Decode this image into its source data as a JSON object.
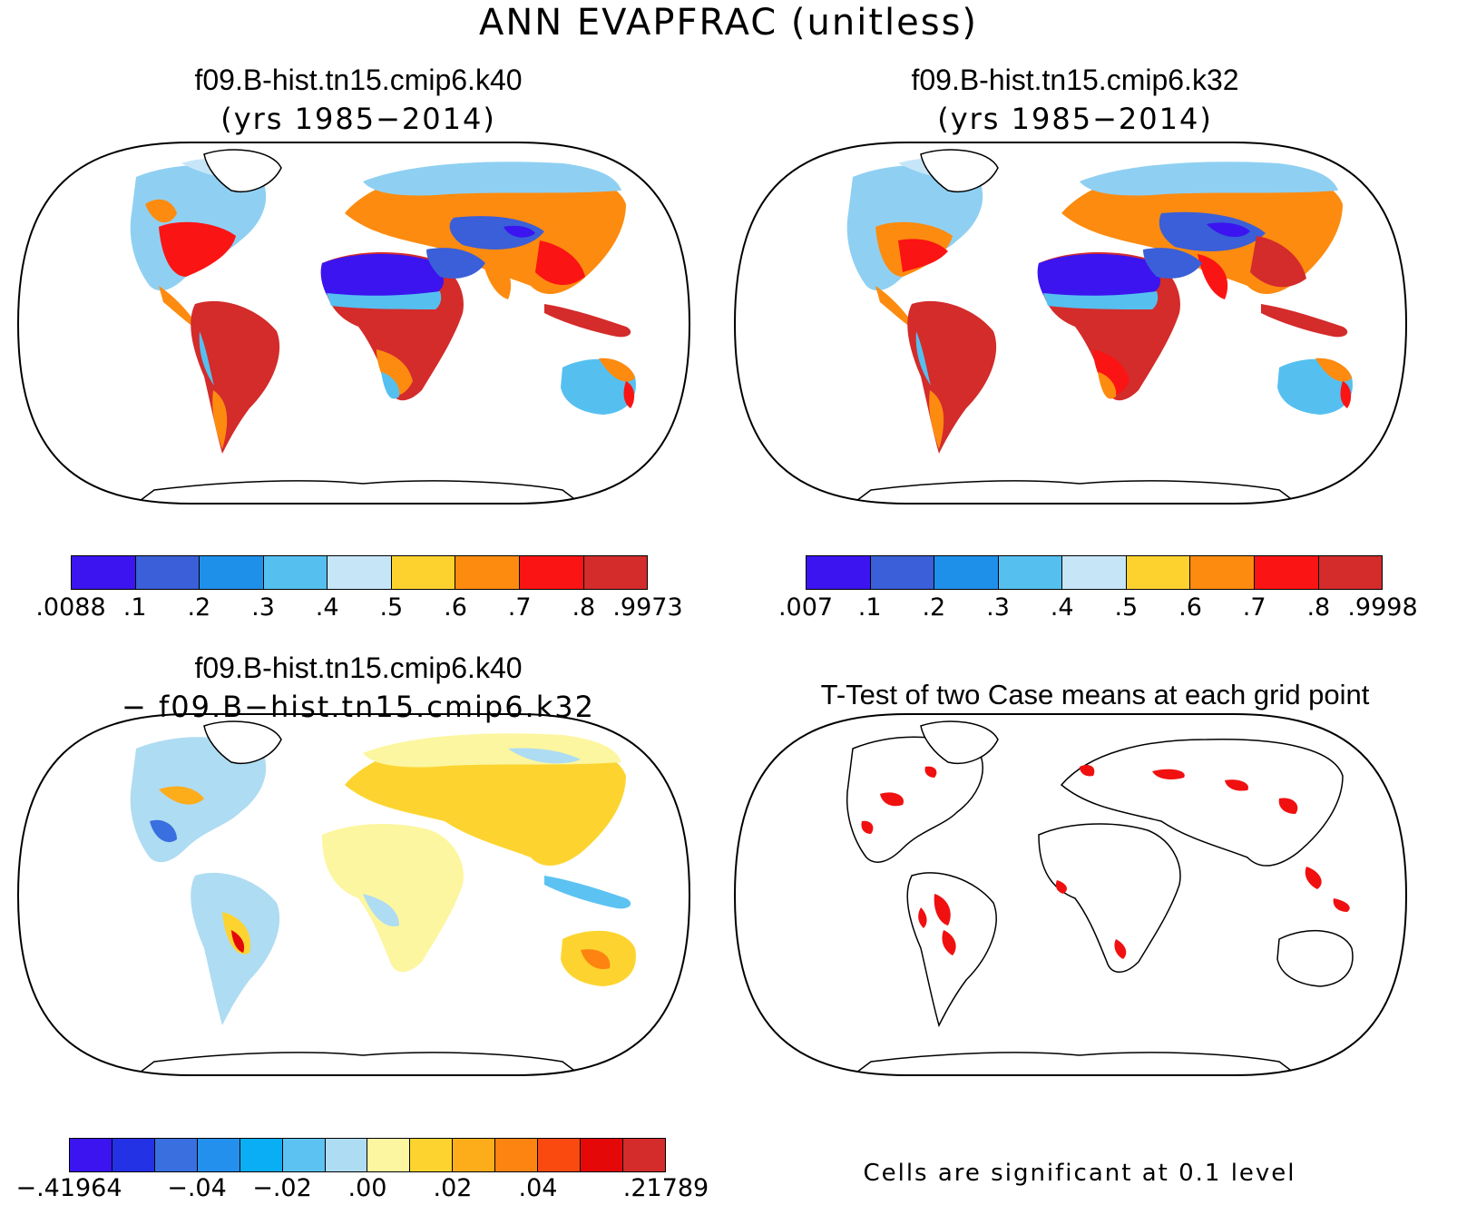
{
  "title": "ANN EVAPFRAC (unitless)",
  "panels": {
    "top_left": {
      "case": "f09.B-hist.tn15.cmip6.k40",
      "years": "(yrs 1985−2014)",
      "colorbar": {
        "colors": [
          "#3b14ef",
          "#3a5fd8",
          "#1f90ea",
          "#55c0f0",
          "#c6e6f8",
          "#fdd22f",
          "#fd8b10",
          "#fb1414",
          "#d42b2b"
        ],
        "labels": [
          ".0088",
          ".1",
          ".2",
          ".3",
          ".4",
          ".5",
          ".6",
          ".7",
          ".8",
          ".9973"
        ]
      }
    },
    "top_right": {
      "case": "f09.B-hist.tn15.cmip6.k32",
      "years": "(yrs 1985−2014)",
      "colorbar": {
        "colors": [
          "#3b14ef",
          "#3a5fd8",
          "#1f90ea",
          "#55c0f0",
          "#c6e6f8",
          "#fdd22f",
          "#fd8b10",
          "#fb1414",
          "#d42b2b"
        ],
        "labels": [
          ".007",
          ".1",
          ".2",
          ".3",
          ".4",
          ".5",
          ".6",
          ".7",
          ".8",
          ".9998"
        ]
      }
    },
    "bottom_left": {
      "case": "f09.B-hist.tn15.cmip6.k40",
      "minus_case": "− f09.B−hist.tn15.cmip6.k32",
      "colorbar": {
        "colors": [
          "#3b14ef",
          "#2432e6",
          "#3a6fe0",
          "#2490ee",
          "#0aaef5",
          "#5cc2f2",
          "#aedcf2",
          "#fcf6a0",
          "#fdd42f",
          "#fdac1a",
          "#fd8410",
          "#fb4a10",
          "#e40808",
          "#d42b2b"
        ],
        "labels": [
          "−.41964",
          "−.04",
          "−.02",
          ".00",
          ".02",
          ".04",
          ".21789"
        ]
      }
    },
    "bottom_right": {
      "title": "T-Test of two Case means at each grid point",
      "note": "Cells are significant at 0.1 level",
      "sig_color": "#f01010"
    }
  }
}
